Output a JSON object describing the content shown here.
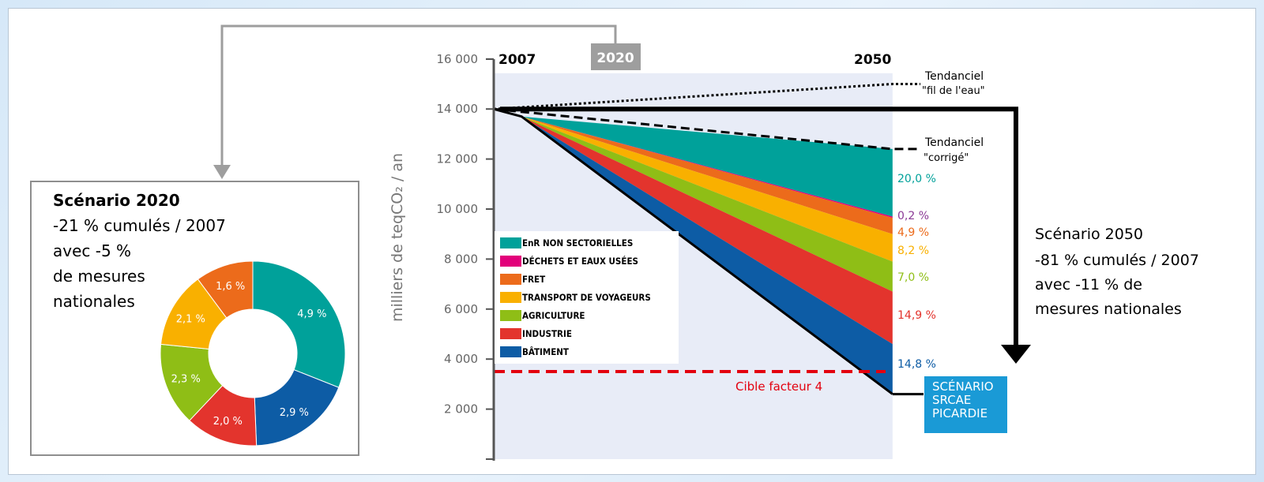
{
  "chart_data": [
    {
      "type": "pie",
      "title": "Scénario 2020",
      "subtitle_lines": [
        "-21 % cumulés / 2007",
        "avec -5 %",
        "de mesures",
        "nationales"
      ],
      "slices": [
        {
          "label": "4,9 %",
          "value": 4.9,
          "color": "#00a19a"
        },
        {
          "label": "2,9 %",
          "value": 2.9,
          "color": "#0d5ca5"
        },
        {
          "label": "2,0 %",
          "value": 2.0,
          "color": "#e3342d"
        },
        {
          "label": "2,3 %",
          "value": 2.3,
          "color": "#8fbe16"
        },
        {
          "label": "2,1 %",
          "value": 2.1,
          "color": "#f9b000"
        },
        {
          "label": "1,6 %",
          "value": 1.6,
          "color": "#ec6b1b"
        }
      ],
      "donut": true
    },
    {
      "type": "area",
      "ylabel": "milliers de teqCO₂ / an",
      "ylim": [
        0,
        16000
      ],
      "yticks": [
        2000,
        4000,
        6000,
        8000,
        10000,
        12000,
        14000,
        16000
      ],
      "ytick_labels": [
        "2 000",
        "4 000",
        "6 000",
        "8 000",
        "10 000",
        "12 000",
        "14 000",
        "16 000"
      ],
      "x_markers": [
        {
          "label": "2007",
          "year": 2007
        },
        {
          "label": "2020",
          "year": 2020,
          "boxed": true
        },
        {
          "label": "2050",
          "year": 2050
        }
      ],
      "start": {
        "year": 2007,
        "value": 14000
      },
      "kink": {
        "year": 2010,
        "value": 13700
      },
      "end_year": 2050,
      "tendanciel_fil": {
        "lines": [
          "Tendanciel",
          "\"fil de l'eau\""
        ],
        "end_value": 15000
      },
      "tendanciel_corrige": {
        "lines": [
          "Tendanciel",
          "\"corrigé\""
        ],
        "end_value": 12400
      },
      "legend": [
        {
          "label": "EnR NON SECTORIELLES",
          "color": "#00a19a"
        },
        {
          "label": "DÉCHETS ET EAUX USÉES",
          "color": "#e2007a"
        },
        {
          "label": "FRET",
          "color": "#ec6b1b"
        },
        {
          "label": "TRANSPORT DE VOYAGEURS",
          "color": "#f9b000"
        },
        {
          "label": "AGRICULTURE",
          "color": "#8fbe16"
        },
        {
          "label": "INDUSTRIE",
          "color": "#e3342d"
        },
        {
          "label": "BÂTIMENT",
          "color": "#0d5ca5"
        }
      ],
      "wedges_2050": [
        {
          "name": "EnR NON SECTORIELLES",
          "upper": 12400,
          "lower": 9700,
          "label": "20,0 %",
          "color": "#00a19a",
          "label_color": "#00a19a"
        },
        {
          "name": "DÉCHETS ET EAUX USÉES",
          "upper": 9700,
          "lower": 9650,
          "label": "0,2 %",
          "color": "#e2007a",
          "label_color": "#8b3a96"
        },
        {
          "name": "FRET",
          "upper": 9650,
          "lower": 9000,
          "label": "4,9 %",
          "color": "#ec6b1b",
          "label_color": "#ec6b1b"
        },
        {
          "name": "TRANSPORT DE VOYAGEURS",
          "upper": 9000,
          "lower": 7900,
          "label": "8,2 %",
          "color": "#f9b000",
          "label_color": "#f9b000"
        },
        {
          "name": "AGRICULTURE",
          "upper": 7900,
          "lower": 6700,
          "label": "7,0 %",
          "color": "#8fbe16",
          "label_color": "#8fbe16"
        },
        {
          "name": "INDUSTRIE",
          "upper": 6700,
          "lower": 4600,
          "label": "14,9 %",
          "color": "#e3342d",
          "label_color": "#e3342d"
        },
        {
          "name": "BÂTIMENT",
          "upper": 4600,
          "lower": 2600,
          "label": "14,8 %",
          "color": "#0d5ca5",
          "label_color": "#0d5ca5"
        }
      ],
      "target": {
        "label": "Cible facteur 4",
        "value": 3500,
        "color": "#e3000f"
      },
      "scenario_box": {
        "lines": [
          "SCÉNARIO",
          "SRCAE",
          "PICARDIE"
        ],
        "color": "#1a9ad6"
      },
      "scenario_2050": {
        "title": "Scénario 2050",
        "lines": [
          "-81 % cumulés / 2007",
          "avec -11 % de",
          "mesures nationales"
        ]
      }
    }
  ]
}
